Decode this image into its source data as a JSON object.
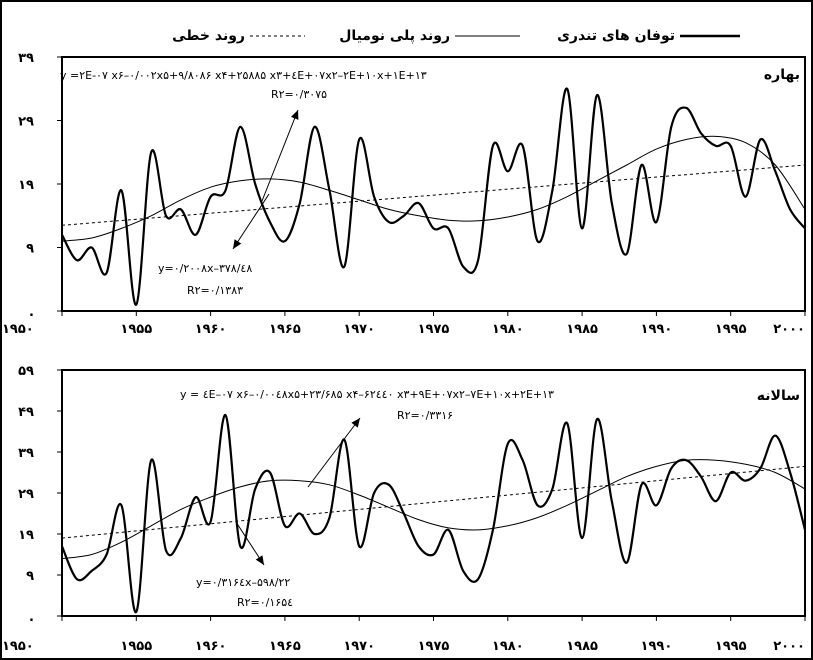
{
  "legend": {
    "storms_label": "توفان های تندری",
    "poly_label": "روند پلی نومیال",
    "linear_label": "روند خطی"
  },
  "chart_data": [
    {
      "type": "line",
      "title": "بهاره",
      "xlim": [
        1950,
        2000
      ],
      "ylim": [
        -1,
        39
      ],
      "yticks": [
        {
          "value": -1,
          "label": "."
        },
        {
          "value": 9,
          "label": "۹"
        },
        {
          "value": 19,
          "label": "۱۹"
        },
        {
          "value": 29,
          "label": "۲۹"
        },
        {
          "value": 39,
          "label": "۳۹"
        }
      ],
      "xticks": [
        {
          "value": 1950,
          "label": "۱۹۵۰"
        },
        {
          "value": 1955,
          "label": "۱۹۵۵"
        },
        {
          "value": 1960,
          "label": "۱۹۶۰"
        },
        {
          "value": 1965,
          "label": "۱۹۶۵"
        },
        {
          "value": 1970,
          "label": "۱۹۷۰"
        },
        {
          "value": 1975,
          "label": "۱۹۷۵"
        },
        {
          "value": 1980,
          "label": "۱۹۸۰"
        },
        {
          "value": 1985,
          "label": "۱۹۸۵"
        },
        {
          "value": 1990,
          "label": "۱۹۹۰"
        },
        {
          "value": 1995,
          "label": "۱۹۹۵"
        },
        {
          "value": 2000,
          "label": "۲۰۰۰"
        }
      ],
      "series": [
        {
          "name": "توفان های تندری",
          "style": "solid-thick",
          "x": [
            1950,
            1951,
            1952,
            1953,
            1954,
            1955,
            1956,
            1957,
            1958,
            1959,
            1960,
            1961,
            1962,
            1963,
            1964,
            1965,
            1966,
            1967,
            1968,
            1969,
            1970,
            1971,
            1972,
            1973,
            1974,
            1975,
            1976,
            1977,
            1978,
            1979,
            1980,
            1981,
            1982,
            1983,
            1984,
            1985,
            1986,
            1987,
            1988,
            1989,
            1990,
            1991,
            1992,
            1993,
            1994,
            1995,
            1996,
            1997,
            1998,
            1999,
            2000
          ],
          "y": [
            11,
            7,
            9,
            5,
            18,
            0,
            24,
            14,
            15,
            11,
            17,
            18,
            28,
            19,
            13,
            10,
            16,
            28,
            18,
            6,
            26,
            17,
            13,
            14,
            16,
            12,
            12,
            6,
            7,
            25,
            21,
            25,
            10,
            18,
            34,
            12,
            33,
            16,
            8,
            22,
            13,
            28,
            31,
            27,
            25,
            25,
            17,
            26,
            21,
            15,
            12
          ]
        },
        {
          "name": "روند پلی نومیال",
          "style": "solid-thin",
          "x": [
            1950,
            1952,
            1954,
            1956,
            1958,
            1960,
            1962,
            1964,
            1966,
            1968,
            1970,
            1972,
            1974,
            1976,
            1978,
            1980,
            1982,
            1984,
            1986,
            1988,
            1990,
            1992,
            1994,
            1996,
            1998,
            2000
          ],
          "y": [
            10,
            10.5,
            12,
            14,
            16.5,
            18.5,
            19.5,
            19.8,
            19.3,
            18,
            16.5,
            15,
            14,
            13.3,
            13.2,
            13.8,
            15,
            17,
            19.5,
            22,
            24.5,
            26,
            26.5,
            25.5,
            22,
            15
          ]
        },
        {
          "name": "روند خطی",
          "style": "dashed",
          "x": [
            1950,
            2000
          ],
          "y": [
            12.5,
            22
          ]
        }
      ],
      "annotations": {
        "poly_eq": "y =۲E-۰۷ x۶–۰/۰۰۲x۵+۹/۸۰۸۶ x۴+۲۵۸۸۵ x۳+٤E+۰۷x۲–۲E+۱۰x+۱E+۱۳",
        "poly_r2": "R۲=۰/۳۰۷۵",
        "linear_eq": "y=۰/۲۰۰۸x–۳۷۸/٤۸",
        "linear_r2": "R۲=۰/۱۳۸۳"
      }
    },
    {
      "type": "line",
      "title": "سالانه",
      "xlim": [
        1950,
        2000
      ],
      "ylim": [
        -1,
        59
      ],
      "yticks": [
        {
          "value": -1,
          "label": "."
        },
        {
          "value": 9,
          "label": "۹"
        },
        {
          "value": 19,
          "label": "۱۹"
        },
        {
          "value": 29,
          "label": "۲۹"
        },
        {
          "value": 39,
          "label": "۳۹"
        },
        {
          "value": 49,
          "label": "۴۹"
        },
        {
          "value": 59,
          "label": "۵۹"
        }
      ],
      "xticks": [
        {
          "value": 1950,
          "label": "۱۹۵۰"
        },
        {
          "value": 1955,
          "label": "۱۹۵۵"
        },
        {
          "value": 1960,
          "label": "۱۹۶۰"
        },
        {
          "value": 1965,
          "label": "۱۹۶۵"
        },
        {
          "value": 1970,
          "label": "۱۹۷۰"
        },
        {
          "value": 1975,
          "label": "۱۹۷۵"
        },
        {
          "value": 1980,
          "label": "۱۹۸۰"
        },
        {
          "value": 1985,
          "label": "۱۹۸۵"
        },
        {
          "value": 1990,
          "label": "۱۹۹۰"
        },
        {
          "value": 1995,
          "label": "۱۹۹۵"
        },
        {
          "value": 2000,
          "label": "۲۰۰۰"
        }
      ],
      "series": [
        {
          "name": "توفان های تندری",
          "style": "solid-thick",
          "x": [
            1950,
            1951,
            1952,
            1953,
            1954,
            1955,
            1956,
            1957,
            1958,
            1959,
            1960,
            1961,
            1962,
            1963,
            1964,
            1965,
            1966,
            1967,
            1968,
            1969,
            1970,
            1971,
            1972,
            1973,
            1974,
            1975,
            1976,
            1977,
            1978,
            1979,
            1980,
            1981,
            1982,
            1983,
            1984,
            1985,
            1986,
            1987,
            1988,
            1989,
            1990,
            1991,
            1992,
            1993,
            1994,
            1995,
            1996,
            1997,
            1998,
            1999,
            2000
          ],
          "y": [
            16,
            8,
            10,
            14,
            26,
            0,
            37,
            15,
            18,
            28,
            22,
            48,
            16,
            30,
            34,
            21,
            24,
            19,
            23,
            42,
            16,
            29,
            31,
            24,
            16,
            14,
            20,
            10,
            8,
            20,
            41,
            37,
            26,
            30,
            46,
            18,
            47,
            27,
            12,
            31,
            26,
            35,
            37,
            33,
            27,
            34,
            32,
            35,
            43,
            34,
            20
          ]
        },
        {
          "name": "روند پلی نومیال",
          "style": "solid-thin",
          "x": [
            1950,
            1952,
            1954,
            1956,
            1958,
            1960,
            1962,
            1964,
            1966,
            1968,
            1970,
            1972,
            1974,
            1976,
            1978,
            1980,
            1982,
            1984,
            1986,
            1988,
            1990,
            1992,
            1994,
            1996,
            1998,
            2000
          ],
          "y": [
            13,
            14,
            17,
            21,
            25,
            28,
            30.5,
            32,
            32,
            31,
            28.5,
            25.5,
            22.5,
            20.5,
            20,
            21,
            23,
            26,
            29.5,
            33,
            35.5,
            37,
            37,
            36,
            34,
            30
          ]
        },
        {
          "name": "روند خطی",
          "style": "dashed",
          "x": [
            1950,
            2000
          ],
          "y": [
            18,
            35.5
          ]
        }
      ],
      "annotations": {
        "poly_eq": "y = ٤E–۰۷ x۶–۰/۰۰٤۸x۵+۲۳/۶۸۵ x۴–۶۲٤٤۰ x۳+۹E+۰۷x۲–۷E+۱۰x+۲E+۱۳",
        "poly_r2": "R۲=۰/۳۳۱۶",
        "linear_eq": "y=۰/۳۱۶٤x–۵۹۸/۲۲",
        "linear_r2": "R۲=۰/۱۶۵٤"
      }
    }
  ]
}
